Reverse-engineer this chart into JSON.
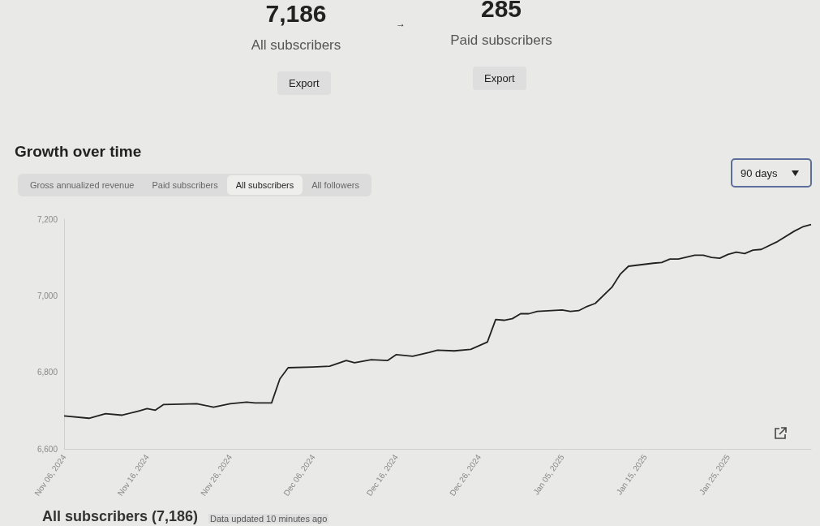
{
  "chart_data": [
    {
      "type": "other",
      "annotations": [
        "7,186",
        "All subscribers",
        "Export",
        "→",
        "285",
        "Paid subscribers",
        "Export"
      ]
    },
    {
      "type": "line",
      "title": "Growth over time",
      "annotations": [
        "Gross annualized revenue",
        "Paid subscribers",
        "All subscribers",
        "All followers",
        "90 days",
        "All subscribers (7,186)",
        "Data updated 10 minutes ago"
      ],
      "x": [
        "2024-11-06",
        "2024-11-09",
        "2024-11-11",
        "2024-11-13",
        "2024-11-15",
        "2024-11-16",
        "2024-11-17",
        "2024-11-18",
        "2024-11-22",
        "2024-11-24",
        "2024-11-26",
        "2024-11-28",
        "2024-11-29",
        "2024-12-01",
        "2024-12-02",
        "2024-12-03",
        "2024-12-06",
        "2024-12-08",
        "2024-12-10",
        "2024-12-11",
        "2024-12-13",
        "2024-12-15",
        "2024-12-16",
        "2024-12-18",
        "2024-12-20",
        "2024-12-21",
        "2024-12-23",
        "2024-12-25",
        "2024-12-27",
        "2024-12-28",
        "2024-12-29",
        "2024-12-30",
        "2024-12-31",
        "2025-01-01",
        "2025-01-02",
        "2025-01-05",
        "2025-01-06",
        "2025-01-07",
        "2025-01-08",
        "2025-01-09",
        "2025-01-11",
        "2025-01-12",
        "2025-01-13",
        "2025-01-16",
        "2025-01-17",
        "2025-01-18",
        "2025-01-19",
        "2025-01-21",
        "2025-01-22",
        "2025-01-23",
        "2025-01-24",
        "2025-01-25",
        "2025-01-26",
        "2025-01-27",
        "2025-01-28",
        "2025-01-29",
        "2025-01-31",
        "2025-02-02",
        "2025-02-03",
        "2025-02-04"
      ],
      "series": [
        {
          "color": "#222222",
          "values": [
            6686,
            6680,
            6692,
            6688,
            6699,
            6705,
            6701,
            6716,
            6718,
            6709,
            6718,
            6722,
            6720,
            6720,
            6783,
            6812,
            6814,
            6816,
            6831,
            6825,
            6833,
            6831,
            6846,
            6842,
            6852,
            6858,
            6856,
            6860,
            6879,
            6938,
            6936,
            6940,
            6953,
            6953,
            6959,
            6963,
            6959,
            6961,
            6972,
            6980,
            7022,
            7056,
            7077,
            7085,
            7087,
            7096,
            7096,
            7106,
            7106,
            7100,
            7098,
            7108,
            7114,
            7110,
            7119,
            7121,
            7142,
            7169,
            7180,
            7186
          ]
        }
      ],
      "xlim": [
        "2024-11-06",
        "2025-02-04"
      ],
      "xticks": [
        {
          "value": "2024-11-06",
          "label": "Nov 06, 2024"
        },
        {
          "value": "2024-11-16",
          "label": "Nov 16, 2024"
        },
        {
          "value": "2024-11-26",
          "label": "Nov 26, 2024"
        },
        {
          "value": "2024-12-06",
          "label": "Dec 06, 2024"
        },
        {
          "value": "2024-12-16",
          "label": "Dec 16, 2024"
        },
        {
          "value": "2024-12-26",
          "label": "Dec 26, 2024"
        },
        {
          "value": "2025-01-05",
          "label": "Jan 05, 2025"
        },
        {
          "value": "2025-01-15",
          "label": "Jan 15, 2025"
        },
        {
          "value": "2025-01-25",
          "label": "Jan 25, 2025"
        }
      ],
      "ylim": [
        6600,
        7200
      ],
      "yticks": [
        {
          "value": 6600,
          "label": "6,600"
        },
        {
          "value": 6800,
          "label": "6,800"
        },
        {
          "value": 7000,
          "label": "7,000"
        },
        {
          "value": 7200,
          "label": "7,200"
        }
      ],
      "grid": false,
      "marker": "none",
      "line_style": "solid"
    }
  ]
}
